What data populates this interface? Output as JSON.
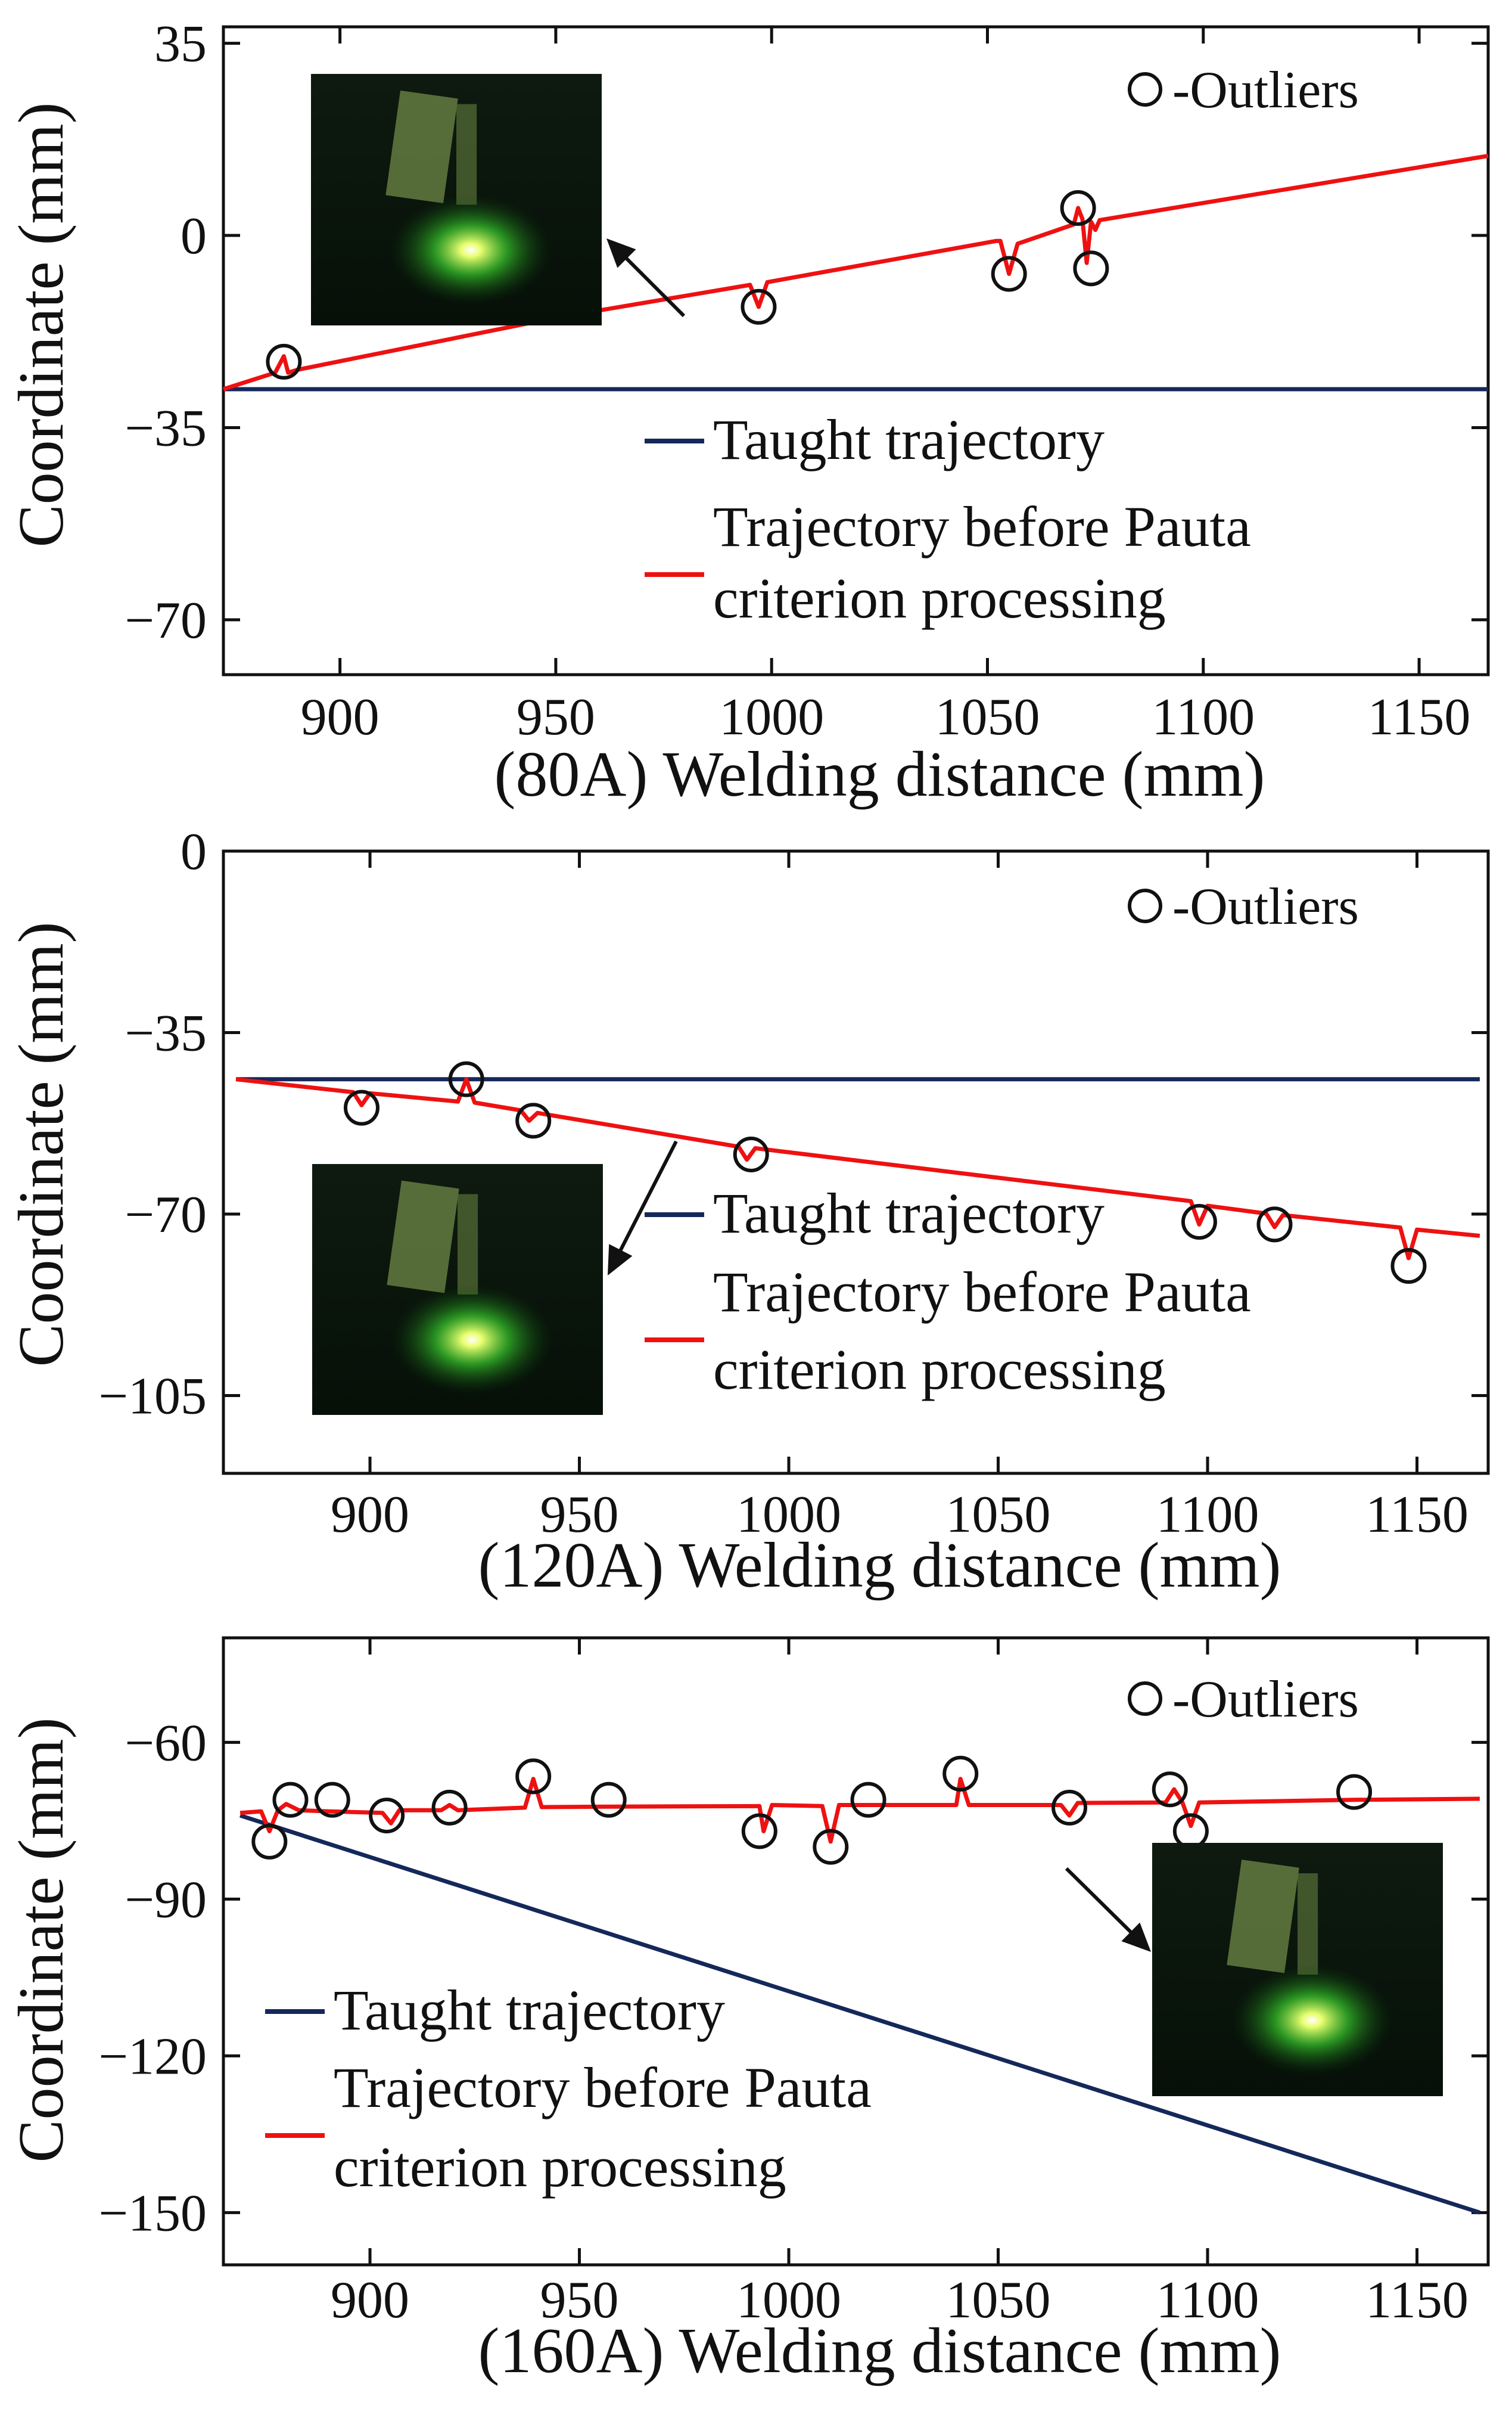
{
  "colors": {
    "taught": "#14285a",
    "trajectory": "#ee1111",
    "axis": "#111111",
    "outlier": "#111111"
  },
  "chart_data": [
    {
      "type": "line",
      "panel": "80A",
      "xlabel": "(80A)  Welding distance (mm)",
      "ylabel": "Coordinate (mm)",
      "xlim": [
        873,
        1166
      ],
      "ylim": [
        -80,
        38
      ],
      "xticks": [
        900,
        950,
        1000,
        1050,
        1100,
        1150
      ],
      "yticks": [
        35,
        0,
        -35,
        -70
      ],
      "ytick_labels": [
        "35",
        "0",
        "−35",
        "−70"
      ],
      "legend": {
        "marker_label": "-Outliers",
        "taught_label": "Taught trajectory",
        "traj_label_1": "Trajectory before Pauta",
        "traj_label_2": "criterion processing",
        "placement": "bottom-right"
      },
      "taught": {
        "x": [
          873,
          1166
        ],
        "y": [
          -28,
          -28
        ]
      },
      "series": [
        {
          "name": "Trajectory before Pauta criterion processing",
          "x": [
            873,
            885,
            887,
            888,
            890,
            950,
            995,
            997,
            999,
            1052,
            1053,
            1055,
            1057,
            1070,
            1071,
            1072,
            1073,
            1074,
            1075,
            1076,
            1166
          ],
          "y": [
            -28,
            -25,
            -22,
            -25,
            -24.5,
            -15,
            -9,
            -13,
            -8.5,
            -1,
            -1,
            -7,
            -1.5,
            2,
            5,
            3,
            -5,
            2.5,
            1,
            2.8,
            14.5
          ]
        }
      ],
      "outliers": {
        "x": [
          887,
          997,
          1055,
          1071,
          1074
        ],
        "y": [
          -23,
          -13,
          -7,
          5,
          -6
        ]
      },
      "image_label": "welding photo 1",
      "image_at": [
        960,
        -12
      ]
    },
    {
      "type": "line",
      "panel": "120A",
      "xlabel": "(120A)  Welding distance (mm)",
      "ylabel": "Coordinate (mm)",
      "xlim": [
        865,
        1167
      ],
      "ylim": [
        -120,
        0
      ],
      "xticks": [
        900,
        950,
        1000,
        1050,
        1100,
        1150
      ],
      "yticks": [
        0,
        -35,
        -70,
        -105
      ],
      "ytick_labels": [
        "0",
        "−35",
        "−70",
        "−105"
      ],
      "legend": {
        "marker_label": "-Outliers",
        "taught_label": "Taught trajectory",
        "traj_label_1": "Trajectory before Pauta",
        "traj_label_2": "criterion processing",
        "placement": "bottom-right"
      },
      "taught": {
        "x": [
          868,
          1165
        ],
        "y": [
          -44,
          -44
        ]
      },
      "series": [
        {
          "name": "Trajectory before Pauta criterion processing",
          "x": [
            868,
            896,
            898,
            900,
            921,
            923,
            925,
            936,
            938,
            940,
            988,
            990,
            992,
            1096,
            1098,
            1100,
            1114,
            1116,
            1118,
            1146,
            1148,
            1150,
            1165
          ],
          "y": [
            -44,
            -46.5,
            -49,
            -46.7,
            -48.3,
            -44,
            -48.5,
            -50,
            -52,
            -50.5,
            -57,
            -59.5,
            -57.3,
            -67.5,
            -72,
            -68.4,
            -69.9,
            -72.5,
            -70.2,
            -72.6,
            -78.5,
            -73,
            -74.2
          ]
        }
      ],
      "outliers": {
        "x": [
          898,
          923,
          939,
          991,
          1098,
          1116,
          1148
        ],
        "y": [
          -49.5,
          -44,
          -52,
          -58.5,
          -71.5,
          -72,
          -80
        ]
      },
      "image_label": "welding photo 2",
      "image_at": [
        930,
        -82
      ]
    },
    {
      "type": "line",
      "panel": "160A",
      "xlabel": "(160A)  Welding distance (mm)",
      "ylabel": "Coordinate (mm)",
      "xlim": [
        865,
        1167
      ],
      "ylim": [
        -160,
        -40
      ],
      "xticks": [
        900,
        950,
        1000,
        1050,
        1100,
        1150
      ],
      "yticks": [
        -60,
        -90,
        -120,
        -150
      ],
      "ytick_labels": [
        "−60",
        "−90",
        "−120",
        "−150"
      ],
      "legend": {
        "marker_label": "-Outliers",
        "taught_label": "Taught trajectory",
        "traj_label_1": "Trajectory before Pauta",
        "traj_label_2": "criterion processing",
        "placement": "bottom-left"
      },
      "taught": {
        "x": [
          869,
          1165
        ],
        "y": [
          -74,
          -150
        ]
      },
      "series": [
        {
          "name": "Trajectory before Pauta criterion processing",
          "x": [
            869,
            874,
            876,
            878,
            880,
            883,
            890,
            903,
            905,
            907,
            917,
            919,
            921,
            937,
            939,
            941,
            957,
            993,
            994,
            996,
            1008,
            1010,
            1012,
            1018,
            1040,
            1041,
            1043,
            1065,
            1067,
            1069,
            1090,
            1092,
            1094,
            1096,
            1098,
            1135,
            1165
          ],
          "y": [
            -73.5,
            -73.2,
            -77,
            -73,
            -71.8,
            -73,
            -73.2,
            -73.5,
            -75.5,
            -73,
            -73,
            -72,
            -73,
            -72.5,
            -67,
            -72.4,
            -72.3,
            -72.2,
            -77,
            -72,
            -72.2,
            -79,
            -72,
            -72,
            -72,
            -67,
            -72,
            -72,
            -74,
            -71.6,
            -71.5,
            -69,
            -71.5,
            -76,
            -71.5,
            -71,
            -70.8
          ]
        }
      ],
      "outliers": {
        "x": [
          876,
          881,
          891,
          904,
          919,
          939,
          957,
          993,
          1010,
          1019,
          1041,
          1067,
          1091,
          1096,
          1135
        ],
        "y": [
          -79,
          -71,
          -71,
          -74,
          -72.5,
          -66.5,
          -71,
          -77,
          -80,
          -71,
          -66,
          -72.5,
          -69,
          -77,
          -69.5
        ]
      },
      "image_label": "welding photo 3",
      "image_at": [
        1073,
        -84
      ]
    }
  ]
}
